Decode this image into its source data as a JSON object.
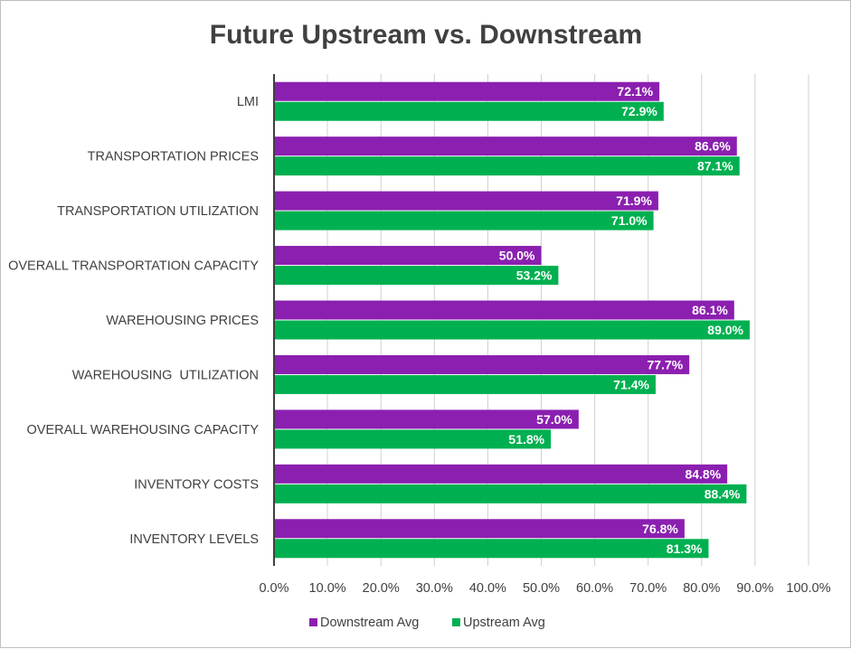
{
  "chart_data": {
    "type": "bar",
    "orientation": "horizontal",
    "title": "Future Upstream vs. Downstream",
    "xlabel": "",
    "ylabel": "",
    "xlim": [
      0,
      100
    ],
    "x_ticks": [
      "0.0%",
      "10.0%",
      "20.0%",
      "30.0%",
      "40.0%",
      "50.0%",
      "60.0%",
      "70.0%",
      "80.0%",
      "90.0%",
      "100.0%"
    ],
    "categories": [
      "LMI",
      "TRANSPORTATION PRICES",
      "TRANSPORTATION UTILIZATION",
      "OVERALL TRANSPORTATION CAPACITY",
      "WAREHOUSING PRICES",
      "WAREHOUSING  UTILIZATION",
      "OVERALL WAREHOUSING CAPACITY",
      "INVENTORY COSTS",
      "INVENTORY LEVELS"
    ],
    "series": [
      {
        "name": "Downstream Avg",
        "color": "#8b1fb0",
        "values": [
          72.1,
          86.6,
          71.9,
          50.0,
          86.1,
          77.7,
          57.0,
          84.8,
          76.8
        ],
        "labels": [
          "72.1%",
          "86.6%",
          "71.9%",
          "50.0%",
          "86.1%",
          "77.7%",
          "57.0%",
          "84.8%",
          "76.8%"
        ]
      },
      {
        "name": "Upstream Avg",
        "color": "#00b050",
        "values": [
          72.9,
          87.1,
          71.0,
          53.2,
          89.0,
          71.4,
          51.8,
          88.4,
          81.3
        ],
        "labels": [
          "72.9%",
          "87.1%",
          "71.0%",
          "53.2%",
          "89.0%",
          "71.4%",
          "51.8%",
          "88.4%",
          "81.3%"
        ]
      }
    ],
    "grid": true,
    "legend_position": "bottom"
  }
}
